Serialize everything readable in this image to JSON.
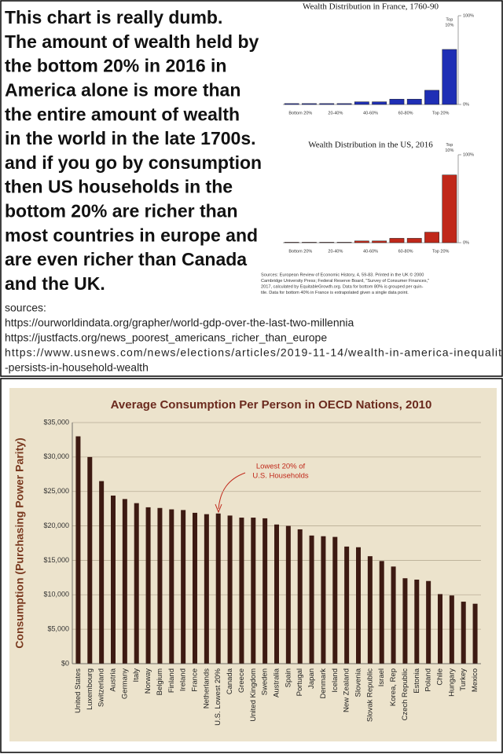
{
  "meme_text": {
    "lines": [
      "This chart is really dumb.",
      "The amount of wealth held by",
      "the bottom 20% in 2016 in",
      "America alone is more than",
      "the entire amount of wealth",
      "in the world in the late 1700s.",
      "and if you go by consumption",
      "then US households in the",
      "bottom 20% are richer than",
      "most countries in europe and",
      "are even richer than Canada",
      "and the UK."
    ]
  },
  "sources": {
    "heading": "sources:",
    "lines": [
      "https://ourworldindata.org/grapher/world-gdp-over-the-last-two-millennia",
      "https://justfacts.org/news_poorest_americans_richer_than_europe",
      "https://www.usnews.com/news/elections/articles/2019-11-14/wealth-in-america-inequalit",
      "-persists-in-household-wealth"
    ]
  },
  "chart_note": {
    "lines": [
      "Sources: European Review of Economic History, 4, 59-83. Printed in the UK © 2000",
      "Cambridge University Press; Federal Reserve Board, \"Survey of Consumer Finances,\"",
      "2017, calculated by EquitableGrowth.org. Data for bottom 80% is grouped per quin-",
      "tile. Data for bottom 40% in France is extrapolated given a single data point."
    ]
  },
  "chart_data": [
    {
      "type": "bar",
      "title": "Wealth Distribution in France, 1760-90",
      "categories": [
        "Bottom 20%",
        null,
        "20-40%",
        null,
        "40-60%",
        null,
        "60-80%",
        null,
        "Top 20%",
        null
      ],
      "values": [
        1,
        1,
        1,
        1,
        3,
        3,
        6,
        6,
        16,
        62
      ],
      "color": "#1f2fb5",
      "annotation": [
        "Top",
        "10%"
      ],
      "ylim": [
        0,
        100
      ],
      "yticks": [
        {
          "value": 0,
          "label": "0%"
        },
        {
          "value": 100,
          "label": "100%"
        }
      ]
    },
    {
      "type": "bar",
      "title": "Wealth Distribution in the US, 2016",
      "categories": [
        "Bottom 20%",
        null,
        "20-40%",
        null,
        "40-60%",
        null,
        "60-80%",
        null,
        "Top 20%",
        null
      ],
      "values": [
        0.5,
        0.5,
        0.5,
        0.5,
        2,
        2,
        5,
        5,
        12,
        77
      ],
      "color": "#c0281a",
      "annotation": [
        "Top",
        "10%"
      ],
      "ylim": [
        0,
        100
      ],
      "yticks": [
        {
          "value": 0,
          "label": "0%"
        },
        {
          "value": 100,
          "label": "100%"
        }
      ]
    },
    {
      "type": "bar",
      "title": "Average Consumption Per Person in OECD Nations, 2010",
      "y_label": "Consumption (Purchasing Power Parity)",
      "annotation": [
        "Lowest 20% of",
        "U.S. Households"
      ],
      "color": "#3d1a12",
      "grid": true,
      "categories": [
        "United States",
        "Luxembourg",
        "Switzerland",
        "Austria",
        "Germany",
        "Italy",
        "Norway",
        "Belgium",
        "Finland",
        "Ireland",
        "France",
        "Netherlands",
        "U.S. Lowest 20%",
        "Canada",
        "Greece",
        "United Kingdom",
        "Sweden",
        "Australia",
        "Spain",
        "Portugal",
        "Japan",
        "Denmark",
        "Iceland",
        "New Zealand",
        "Slovenia",
        "Slovak Republic",
        "Israel",
        "Korea, Rep",
        "Czech Republic",
        "Estonia",
        "Poland",
        "Chile",
        "Hungary",
        "Turkey",
        "Mexico"
      ],
      "values": [
        33000,
        30000,
        26500,
        24400,
        23900,
        23300,
        22700,
        22600,
        22400,
        22300,
        21900,
        21700,
        21800,
        21500,
        21200,
        21200,
        21100,
        20200,
        20000,
        19500,
        18600,
        18500,
        18400,
        17000,
        16900,
        15600,
        14900,
        14100,
        12400,
        12200,
        12000,
        10100,
        9900,
        9000,
        8700
      ],
      "ylim": [
        0,
        35000
      ],
      "yticks": [
        {
          "value": 0,
          "label": "$0"
        },
        {
          "value": 5000,
          "label": "$5,000"
        },
        {
          "value": 10000,
          "label": "$10,000"
        },
        {
          "value": 15000,
          "label": "$15,000"
        },
        {
          "value": 20000,
          "label": "$20,000"
        },
        {
          "value": 25000,
          "label": "$25,000"
        },
        {
          "value": 30000,
          "label": "$30,000"
        },
        {
          "value": 35000,
          "label": "$35,000"
        }
      ]
    }
  ]
}
